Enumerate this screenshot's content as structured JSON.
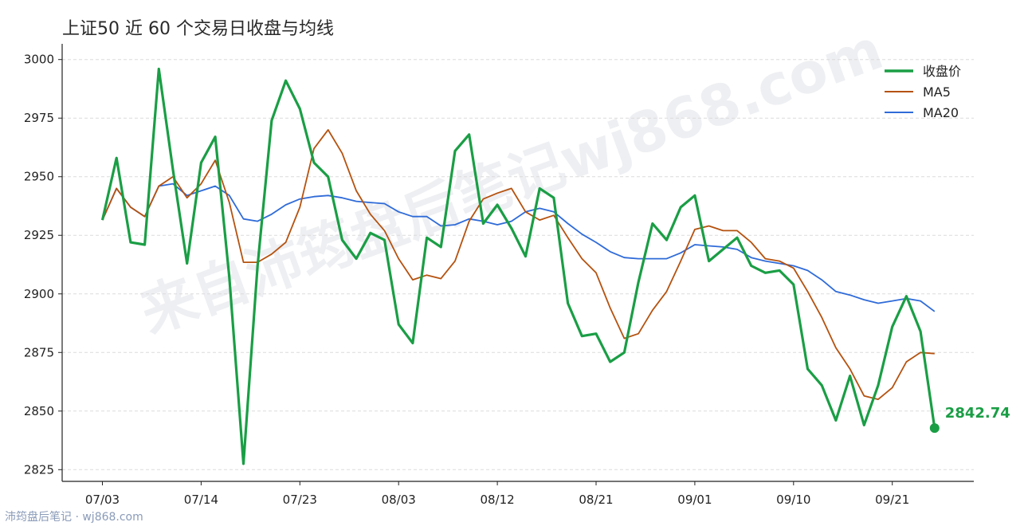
{
  "title": "上证50 近 60 个交易日收盘与均线",
  "footer": "沛筠盘后笔记 · wj868.com",
  "watermark": "来自沛筠盘后笔记wj868.com",
  "colors": {
    "close": "#1a9e45",
    "ma5": "#b5520f",
    "ma20": "#2f6bd8",
    "grid": "#dcdcdc",
    "axis": "#222222"
  },
  "chart_data": {
    "type": "line",
    "ylim": [
      2820,
      3005
    ],
    "yticks": [
      2825,
      2850,
      2875,
      2900,
      2925,
      2950,
      2975,
      3000
    ],
    "xticks": [
      {
        "index": 0,
        "label": "07/03"
      },
      {
        "index": 7,
        "label": "07/14"
      },
      {
        "index": 14,
        "label": "07/23"
      },
      {
        "index": 21,
        "label": "08/03"
      },
      {
        "index": 28,
        "label": "08/12"
      },
      {
        "index": 35,
        "label": "08/21"
      },
      {
        "index": 42,
        "label": "09/01"
      },
      {
        "index": 49,
        "label": "09/10"
      },
      {
        "index": 56,
        "label": "09/21"
      }
    ],
    "grid": "horizontal dashed",
    "legend_position": "top-right",
    "series": [
      {
        "name": "收盘价",
        "key": "close",
        "values": [
          2931.5,
          2958,
          2922,
          2921,
          2996,
          2953,
          2913,
          2956,
          2967,
          2907,
          2827.5,
          2912,
          2974,
          2991,
          2979,
          2956,
          2950,
          2923,
          2915,
          2926,
          2923,
          2887,
          2879,
          2924,
          2920,
          2961,
          2968,
          2930,
          2938,
          2928,
          2916,
          2945,
          2941,
          2896,
          2882,
          2883,
          2871,
          2875,
          2905,
          2930,
          2923,
          2937,
          2942,
          2914,
          2919,
          2924,
          2912,
          2909,
          2910,
          2904,
          2868,
          2861,
          2846,
          2865,
          2844,
          2861,
          2886,
          2899,
          2884,
          2842.74
        ]
      },
      {
        "name": "MA5",
        "key": "ma5",
        "values": [
          2931.5,
          2945,
          2937,
          2933,
          2946,
          2950,
          2941,
          2947,
          2957,
          2939,
          2913.5,
          2913.5,
          2917,
          2922,
          2937,
          2962,
          2970,
          2960,
          2944,
          2934,
          2927,
          2915,
          2906,
          2908,
          2906.5,
          2914,
          2931,
          2940.5,
          2943,
          2945,
          2935,
          2931.5,
          2933.5,
          2924,
          2915,
          2909,
          2894,
          2881,
          2883,
          2893,
          2901,
          2914,
          2927.5,
          2929,
          2927,
          2927,
          2922,
          2915,
          2914,
          2911,
          2901,
          2890,
          2877,
          2868,
          2856.5,
          2855,
          2860,
          2871,
          2875,
          2874.5
        ]
      },
      {
        "name": "MA20",
        "key": "ma20",
        "values": [
          2931.5,
          2945,
          2937,
          2933,
          2946,
          2947,
          2942,
          2944,
          2946,
          2942,
          2932,
          2931,
          2934,
          2938,
          2940.5,
          2941.5,
          2942,
          2941,
          2939.5,
          2939,
          2938.5,
          2935,
          2933,
          2933,
          2929,
          2929.5,
          2932,
          2931,
          2929.5,
          2931,
          2935,
          2936.5,
          2935,
          2930,
          2925.5,
          2922,
          2918,
          2915.5,
          2915,
          2915,
          2915,
          2917.5,
          2921,
          2920.5,
          2920,
          2919,
          2915.5,
          2914,
          2913,
          2912,
          2910,
          2906,
          2901,
          2899.5,
          2897.5,
          2896,
          2897,
          2898,
          2897,
          2892.5
        ]
      }
    ],
    "last_value_label": "2842.74"
  }
}
